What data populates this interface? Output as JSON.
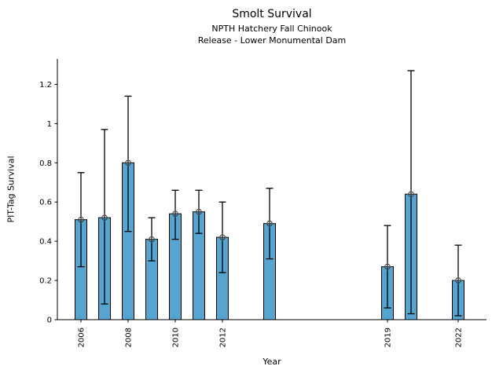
{
  "chart_data": {
    "type": "bar",
    "title": "Smolt Survival",
    "subtitle1": "NPTH Hatchery Fall Chinook",
    "subtitle2": "Release - Lower Monumental Dam",
    "xlabel": "Year",
    "ylabel": "PIT-Tag Survival",
    "x": [
      2006,
      2007,
      2008,
      2009,
      2010,
      2011,
      2012,
      2014,
      2019,
      2020,
      2022
    ],
    "values": [
      0.51,
      0.52,
      0.8,
      0.41,
      0.54,
      0.55,
      0.42,
      0.49,
      0.27,
      0.64,
      0.2
    ],
    "error_low": [
      0.27,
      0.08,
      0.45,
      0.3,
      0.41,
      0.44,
      0.24,
      0.31,
      0.06,
      0.03,
      0.02
    ],
    "error_high": [
      0.75,
      0.97,
      1.14,
      0.52,
      0.66,
      0.66,
      0.6,
      0.67,
      0.48,
      1.27,
      0.38
    ],
    "bar_width_years": 0.5,
    "xticks": [
      2006,
      2008,
      2010,
      2012,
      2019,
      2022
    ],
    "yticks": [
      0,
      0.2,
      0.4,
      0.6,
      0.8,
      1,
      1.2
    ],
    "ytick_labels": [
      "0",
      "0.2",
      "0.4",
      "0.6",
      "0.8",
      "1",
      "1.2"
    ],
    "xlim": [
      2005.0,
      2023.2
    ],
    "ylim": [
      0,
      1.33
    ],
    "grid": false,
    "legend": null,
    "marker": "circle-plus",
    "colors": {
      "bar_fill": "#56a5d1",
      "bar_edge": "#000000",
      "error_bar": "#000000",
      "marker_stroke": "#3a3a3a",
      "axis": "#000000",
      "text": "#000000"
    }
  }
}
